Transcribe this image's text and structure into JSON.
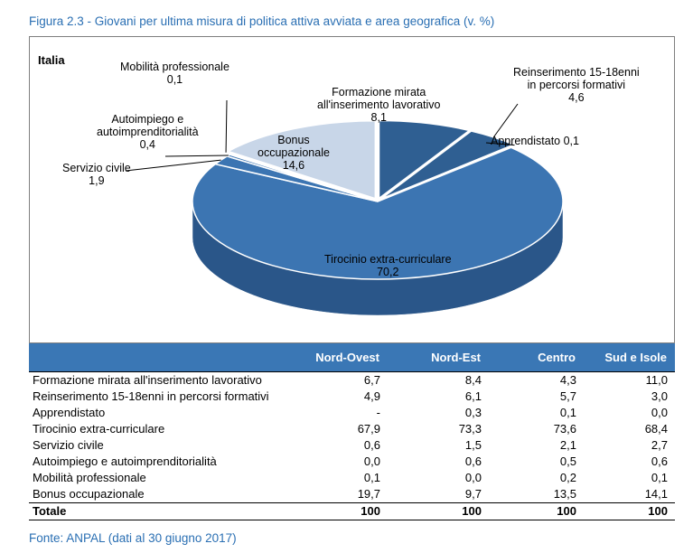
{
  "figure_title": "Figura 2.3 - Giovani per ultima misura di politica attiva avviata e area geografica (v. %)",
  "source": "Fonte: ANPAL (dati al 30 giugno 2017)",
  "colors": {
    "accent_text": "#2a6fb3",
    "header_bg": "#3a77b5",
    "slice_main": "#3c75b2",
    "slice_dark": "#2f5f92",
    "slice_light": "#c8d6e8"
  },
  "chart_data": [
    {
      "type": "pie",
      "title": "Italia",
      "slices": [
        {
          "label_lines": [
            "Formazione mirata",
            "all'inserimento lavorativo"
          ],
          "label": "Formazione mirata all'inserimento lavorativo",
          "value": 8.1,
          "value_text": "8,1"
        },
        {
          "label_lines": [
            "Reinserimento 15-18enni",
            "in percorsi formativi"
          ],
          "label": "Reinserimento 15-18enni in percorsi formativi",
          "value": 4.6,
          "value_text": "4,6"
        },
        {
          "label_lines": [
            "Apprendistato 0,1"
          ],
          "label": "Apprendistato",
          "value": 0.1,
          "value_text": ""
        },
        {
          "label_lines": [
            "Tirocinio extra-curriculare"
          ],
          "label": "Tirocinio extra-curriculare",
          "value": 70.2,
          "value_text": "70,2"
        },
        {
          "label_lines": [
            "Servizio civile"
          ],
          "label": "Servizio civile",
          "value": 1.9,
          "value_text": "1,9"
        },
        {
          "label_lines": [
            "Autoimpiego e",
            "autoimprenditorialità"
          ],
          "label": "Autoimpiego e autoimprenditorialità",
          "value": 0.4,
          "value_text": "0,4"
        },
        {
          "label_lines": [
            "Mobilità  professionale"
          ],
          "label": "Mobilità professionale",
          "value": 0.1,
          "value_text": "0,1"
        },
        {
          "label_lines": [
            "Bonus",
            "occupazionale"
          ],
          "label": "Bonus occupazionale",
          "value": 14.6,
          "value_text": "14,6"
        }
      ]
    },
    {
      "type": "table",
      "columns": [
        "",
        "Nord-Ovest",
        "Nord-Est",
        "Centro",
        "Sud e Isole"
      ],
      "rows": [
        {
          "label": "Formazione mirata all'inserimento lavorativo",
          "values": [
            "6,7",
            "8,4",
            "4,3",
            "11,0"
          ]
        },
        {
          "label": "Reinserimento 15-18enni in percorsi formativi",
          "values": [
            "4,9",
            "6,1",
            "5,7",
            "3,0"
          ]
        },
        {
          "label": "Apprendistato",
          "values": [
            "-",
            "0,3",
            "0,1",
            "0,0"
          ]
        },
        {
          "label": "Tirocinio extra-curriculare",
          "values": [
            "67,9",
            "73,3",
            "73,6",
            "68,4"
          ]
        },
        {
          "label": "Servizio civile",
          "values": [
            "0,6",
            "1,5",
            "2,1",
            "2,7"
          ]
        },
        {
          "label": "Autoimpiego e autoimprenditorialità",
          "values": [
            "0,0",
            "0,6",
            "0,5",
            "0,6"
          ]
        },
        {
          "label": "Mobilità professionale",
          "values": [
            "0,1",
            "0,0",
            "0,2",
            "0,1"
          ]
        },
        {
          "label": "Bonus occupazionale",
          "values": [
            "19,7",
            "9,7",
            "13,5",
            "14,1"
          ]
        }
      ],
      "total": {
        "label": "Totale",
        "values": [
          "100",
          "100",
          "100",
          "100"
        ]
      }
    }
  ]
}
